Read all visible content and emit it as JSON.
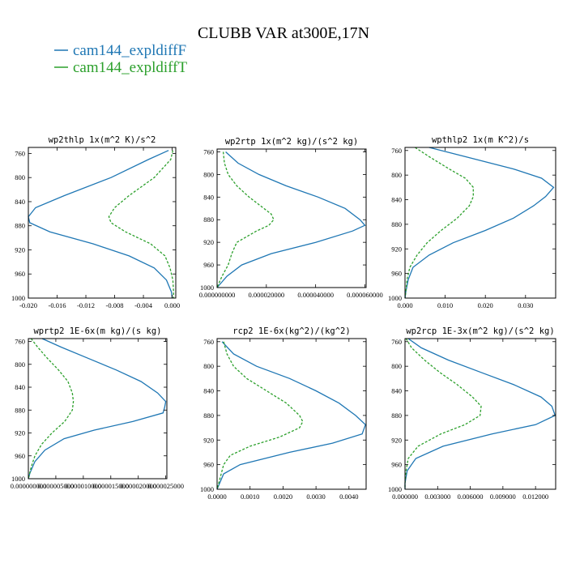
{
  "title": "CLUBB VAR at300E,17N",
  "legend": [
    {
      "name": "cam144_expldiffF",
      "color": "#1f77b4",
      "dash": "solid"
    },
    {
      "name": "cam144_expldiffT",
      "color": "#2ca02c",
      "dash": "dashed"
    }
  ],
  "chart_data": [
    {
      "type": "line",
      "title": "wp2thlp  1x(m^2 K)/s^2",
      "ylim": [
        1000,
        750
      ],
      "yticks": [
        "760",
        "800",
        "840",
        "880",
        "920",
        "960",
        "1000"
      ],
      "xlim": [
        -0.02,
        0.0005
      ],
      "xticks": [
        -0.02,
        -0.016,
        -0.012,
        -0.008,
        -0.004,
        0.0
      ],
      "xtick_labels": [
        "-0.020",
        "-0.016",
        "-0.012",
        "-0.008",
        "-0.004",
        "0.000"
      ],
      "series": [
        {
          "p": [
            755,
            770,
            800,
            830,
            850,
            865,
            875,
            890,
            910,
            930,
            950,
            970,
            990,
            1000
          ],
          "x": [
            -0.0005,
            -0.0033,
            -0.0085,
            -0.015,
            -0.019,
            -0.02,
            -0.0198,
            -0.017,
            -0.011,
            -0.006,
            -0.0025,
            -0.0008,
            -0.0001,
            0.0
          ]
        },
        {
          "p": [
            755,
            770,
            800,
            830,
            850,
            865,
            875,
            890,
            910,
            930,
            950,
            970,
            990,
            1000
          ],
          "x": [
            0.0001,
            -0.0002,
            -0.0025,
            -0.006,
            -0.008,
            -0.0088,
            -0.0085,
            -0.0065,
            -0.003,
            -0.001,
            -0.0003,
            0.0001,
            0.0002,
            0.0002
          ]
        }
      ]
    },
    {
      "type": "line",
      "title": "wp2rtp  1x(m^2 kg)/(s^2 kg)",
      "ylim": [
        1000,
        755
      ],
      "yticks": [
        "760",
        "800",
        "840",
        "880",
        "920",
        "960",
        "1000"
      ],
      "xlim": [
        0.0,
        6.05e-05
      ],
      "xticks": [
        0.0,
        2e-05,
        4e-05,
        6e-05
      ],
      "xtick_labels": [
        "0.000000000",
        "0.000020000",
        "0.000040000",
        "0.000060000"
      ],
      "series": [
        {
          "p": [
            760,
            780,
            800,
            820,
            840,
            860,
            880,
            890,
            900,
            920,
            940,
            960,
            980,
            1000
          ],
          "x": [
            3.5e-06,
            8.5e-06,
            1.7e-05,
            2.8e-05,
            4.1e-05,
            5.2e-05,
            5.8e-05,
            6e-05,
            5.5e-05,
            4e-05,
            2.2e-05,
            1e-05,
            4e-06,
            0.0
          ],
          "ref": 0
        },
        {
          "p": [
            760,
            780,
            800,
            820,
            840,
            860,
            870,
            880,
            890,
            900,
            920,
            940,
            960,
            980,
            1000
          ],
          "x": [
            2.5e-06,
            3e-06,
            4.5e-06,
            8e-06,
            1.3e-05,
            1.9e-05,
            2.2e-05,
            2.3e-05,
            2.1e-05,
            1.6e-05,
            8e-06,
            6e-06,
            4.5e-06,
            2e-06,
            0.0
          ]
        }
      ]
    },
    {
      "type": "line",
      "title": "wpthlp2  1x(m K^2)/s",
      "ylim": [
        1000,
        755
      ],
      "yticks": [
        "760",
        "800",
        "840",
        "880",
        "920",
        "960",
        "1000"
      ],
      "xlim": [
        0.0,
        0.0375
      ],
      "xticks": [
        0.0,
        0.01,
        0.02,
        0.03
      ],
      "xtick_labels": [
        "0.000",
        "0.010",
        "0.020",
        "0.030"
      ],
      "series": [
        {
          "p": [
            755,
            770,
            790,
            805,
            820,
            835,
            850,
            870,
            890,
            910,
            930,
            950,
            970,
            990,
            1000
          ],
          "x": [
            0.006,
            0.015,
            0.027,
            0.034,
            0.037,
            0.035,
            0.032,
            0.027,
            0.02,
            0.012,
            0.006,
            0.002,
            0.0008,
            0.0002,
            0.0
          ]
        },
        {
          "p": [
            755,
            770,
            790,
            805,
            820,
            835,
            850,
            870,
            890,
            910,
            930,
            950,
            970,
            990,
            1000
          ],
          "x": [
            0.0025,
            0.006,
            0.011,
            0.015,
            0.017,
            0.017,
            0.016,
            0.013,
            0.009,
            0.0055,
            0.003,
            0.0012,
            0.0005,
            0.0002,
            0.0
          ]
        }
      ]
    },
    {
      "type": "line",
      "title": "wprtp2  1E-6x(m kg)/(s kg)",
      "ylim": [
        1000,
        755
      ],
      "yticks": [
        "760",
        "800",
        "840",
        "880",
        "920",
        "960",
        "1000"
      ],
      "xlim": [
        0.0,
        2.52e-05
      ],
      "xticks": [
        0.0,
        5e-06,
        1e-05,
        1.5e-05,
        2e-05,
        2.5e-05
      ],
      "xtick_labels": [
        "0.000000000",
        "0.000005000",
        "0.000010000",
        "0.000015000",
        "0.000020000",
        "0.000025000"
      ],
      "series": [
        {
          "p": [
            755,
            770,
            790,
            810,
            830,
            850,
            865,
            875,
            885,
            900,
            915,
            930,
            950,
            970,
            990,
            1000
          ],
          "x": [
            2.5e-06,
            6e-06,
            1.1e-05,
            1.6e-05,
            2.05e-05,
            2.35e-05,
            2.5e-05,
            2.48e-05,
            2.45e-05,
            1.9e-05,
            1.2e-05,
            6.5e-06,
            3e-06,
            1.2e-06,
            3e-07,
            0.0
          ]
        },
        {
          "p": [
            755,
            770,
            790,
            810,
            830,
            850,
            865,
            880,
            900,
            920,
            940,
            960,
            980,
            1000
          ],
          "x": [
            5e-07,
            1.7e-06,
            3.5e-06,
            5.5e-06,
            7.2e-06,
            8e-06,
            8.2e-06,
            8e-06,
            6.6e-06,
            4.3e-06,
            2.4e-06,
            1.2e-06,
            5e-07,
            0.0
          ]
        }
      ]
    },
    {
      "type": "line",
      "title": "rcp2  1E-6x(kg^2)/(kg^2)",
      "ylim": [
        1000,
        755
      ],
      "yticks": [
        "760",
        "800",
        "840",
        "880",
        "920",
        "960",
        "1000"
      ],
      "xlim": [
        0.0,
        0.00452
      ],
      "xticks": [
        0.0,
        0.001,
        0.002,
        0.003,
        0.004
      ],
      "xtick_labels": [
        "0.0000",
        "0.0010",
        "0.0020",
        "0.0030",
        "0.0040"
      ],
      "series": [
        {
          "p": [
            760,
            780,
            800,
            820,
            840,
            860,
            880,
            895,
            910,
            925,
            940,
            960,
            975,
            1000
          ],
          "x": [
            0.00015,
            0.0005,
            0.0012,
            0.0022,
            0.003,
            0.0037,
            0.0042,
            0.0045,
            0.0044,
            0.0035,
            0.0022,
            0.0007,
            0.0002,
            0.0
          ]
        },
        {
          "p": [
            760,
            780,
            800,
            820,
            840,
            860,
            880,
            890,
            900,
            915,
            930,
            945,
            960,
            980,
            1000
          ],
          "x": [
            0.0002,
            0.0003,
            0.0005,
            0.0009,
            0.0015,
            0.0021,
            0.0025,
            0.0026,
            0.0025,
            0.0019,
            0.001,
            0.0004,
            0.0002,
            0.0001,
            0.0
          ]
        }
      ]
    },
    {
      "type": "line",
      "title": "wp2rcp  1E-3x(m^2 kg)/(s^2 kg)",
      "ylim": [
        1000,
        755
      ],
      "yticks": [
        "760",
        "800",
        "840",
        "880",
        "920",
        "960",
        "1000"
      ],
      "xlim": [
        0.0,
        0.01385
      ],
      "xticks": [
        0.0,
        0.003,
        0.006,
        0.009,
        0.012
      ],
      "xtick_labels": [
        "0.000000",
        "0.003000",
        "0.006000",
        "0.009000",
        "0.012000"
      ],
      "series": [
        {
          "p": [
            755,
            770,
            790,
            810,
            830,
            850,
            865,
            880,
            895,
            910,
            930,
            950,
            970,
            990,
            1000
          ],
          "x": [
            0.0003,
            0.0015,
            0.004,
            0.007,
            0.01,
            0.0125,
            0.0135,
            0.0138,
            0.012,
            0.008,
            0.0035,
            0.001,
            0.0002,
            0.0,
            0.0
          ]
        },
        {
          "p": [
            755,
            770,
            790,
            810,
            830,
            850,
            865,
            880,
            895,
            910,
            930,
            950,
            970,
            990,
            1000
          ],
          "x": [
            0.0001,
            0.0006,
            0.0018,
            0.0032,
            0.0048,
            0.0062,
            0.007,
            0.0069,
            0.0055,
            0.0033,
            0.0012,
            0.0003,
            0.0001,
            0.0,
            0.0
          ]
        }
      ]
    }
  ]
}
